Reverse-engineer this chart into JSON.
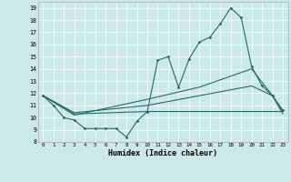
{
  "xlabel": "Humidex (Indice chaleur)",
  "xlim": [
    -0.5,
    23.5
  ],
  "ylim": [
    8,
    19.5
  ],
  "yticks": [
    8,
    9,
    10,
    11,
    12,
    13,
    14,
    15,
    16,
    17,
    18,
    19
  ],
  "xticks": [
    0,
    1,
    2,
    3,
    4,
    5,
    6,
    7,
    8,
    9,
    10,
    11,
    12,
    13,
    14,
    15,
    16,
    17,
    18,
    19,
    20,
    21,
    22,
    23
  ],
  "bg_color": "#cce9e9",
  "line_color": "#236b6b",
  "line_main": [
    [
      0,
      11.8
    ],
    [
      1,
      11.0
    ],
    [
      2,
      10.0
    ],
    [
      3,
      9.8
    ],
    [
      4,
      9.1
    ],
    [
      5,
      9.1
    ],
    [
      6,
      9.1
    ],
    [
      7,
      9.1
    ],
    [
      8,
      8.4
    ],
    [
      9,
      9.7
    ],
    [
      10,
      10.5
    ],
    [
      11,
      14.7
    ],
    [
      12,
      15.0
    ],
    [
      13,
      12.5
    ],
    [
      14,
      14.8
    ],
    [
      15,
      16.2
    ],
    [
      16,
      16.6
    ],
    [
      17,
      17.7
    ],
    [
      18,
      19.0
    ],
    [
      19,
      18.2
    ],
    [
      20,
      14.2
    ],
    [
      21,
      12.6
    ],
    [
      22,
      11.8
    ],
    [
      23,
      10.6
    ]
  ],
  "line2": [
    [
      0,
      11.8
    ],
    [
      3,
      10.2
    ],
    [
      10,
      11.5
    ],
    [
      15,
      12.5
    ],
    [
      20,
      14.0
    ],
    [
      22,
      11.8
    ],
    [
      23,
      10.3
    ]
  ],
  "line3": [
    [
      0,
      11.8
    ],
    [
      3,
      10.4
    ],
    [
      10,
      11.0
    ],
    [
      15,
      11.8
    ],
    [
      20,
      12.6
    ],
    [
      22,
      11.8
    ],
    [
      23,
      10.5
    ]
  ],
  "line4": [
    [
      0,
      11.8
    ],
    [
      3,
      10.3
    ],
    [
      10,
      10.5
    ],
    [
      20,
      10.5
    ],
    [
      23,
      10.5
    ]
  ]
}
